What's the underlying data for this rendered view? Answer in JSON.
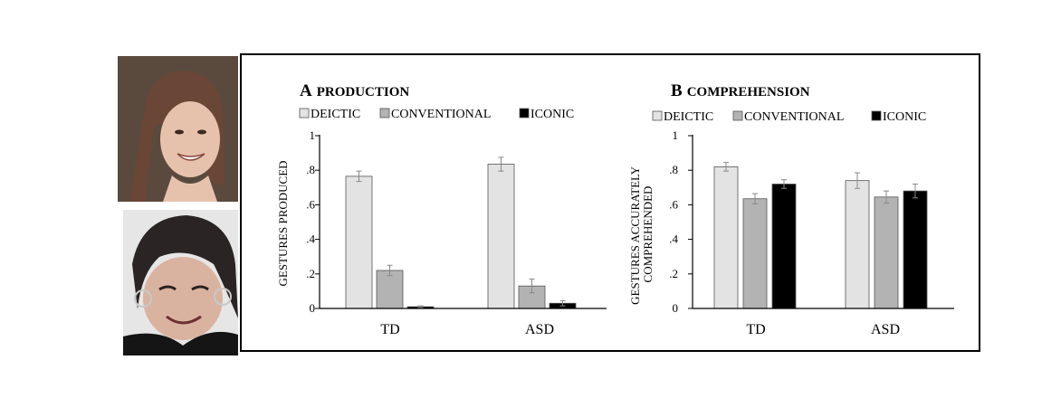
{
  "colors": {
    "deictic": "#e3e3e3",
    "conventional": "#b3b3b3",
    "iconic": "#000000",
    "bar_stroke": "#555555",
    "error_bar": "#888888"
  },
  "photos": [
    {
      "name": "woman-smiling-photo",
      "bg": "#5a4a3e",
      "skin": "#e6c2ad",
      "hair": "#6a4636"
    },
    {
      "name": "woman-with-hoop-earrings-photo",
      "bg": "#e6e6e6",
      "skin": "#d9b3a0",
      "hair": "#2a2424"
    }
  ],
  "chart_data": [
    {
      "type": "bar",
      "panel_letter": "A",
      "title": "PRODUCTION",
      "categories": [
        "TD",
        "ASD"
      ],
      "series": [
        {
          "name": "DEICTIC",
          "values": [
            0.765,
            0.835
          ],
          "errors": [
            0.03,
            0.04
          ]
        },
        {
          "name": "CONVENTIONAL",
          "values": [
            0.22,
            0.13
          ],
          "errors": [
            0.03,
            0.04
          ]
        },
        {
          "name": "ICONIC",
          "values": [
            0.01,
            0.03
          ],
          "errors": [
            0.005,
            0.015
          ]
        }
      ],
      "ylabel": "GESTURES PRODUCED",
      "ylim": [
        0,
        1
      ],
      "yticks": [
        0,
        0.2,
        0.4,
        0.6,
        0.8,
        1
      ],
      "ytick_labels": [
        "0",
        ".2",
        ".4",
        ".6",
        ".8",
        "1"
      ],
      "grid": false,
      "legend": "top"
    },
    {
      "type": "bar",
      "panel_letter": "B",
      "title": "COMPREHENSION",
      "categories": [
        "TD",
        "ASD"
      ],
      "series": [
        {
          "name": "DEICTIC",
          "values": [
            0.82,
            0.74
          ],
          "errors": [
            0.025,
            0.045
          ]
        },
        {
          "name": "CONVENTIONAL",
          "values": [
            0.635,
            0.645
          ],
          "errors": [
            0.03,
            0.035
          ]
        },
        {
          "name": "ICONIC",
          "values": [
            0.72,
            0.68
          ],
          "errors": [
            0.025,
            0.04
          ]
        }
      ],
      "ylabel": "GESTURES ACCURATELY COMPREHENDED",
      "ylabel_lines": [
        "GESTURES ACCURATELY",
        "COMPREHENDED"
      ],
      "ylim": [
        0,
        1
      ],
      "yticks": [
        0,
        0.2,
        0.4,
        0.6,
        0.8,
        1
      ],
      "ytick_labels": [
        "0",
        ".2",
        ".4",
        ".6",
        ".8",
        "1"
      ],
      "grid": false,
      "legend": "top"
    }
  ]
}
